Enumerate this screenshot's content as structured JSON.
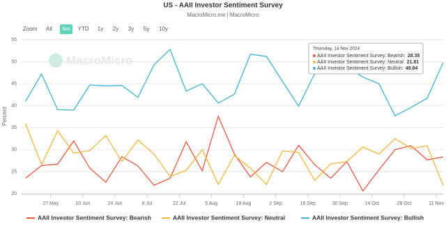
{
  "chart_data": {
    "type": "line",
    "title": "US - AAII Investor Sentiment Survey",
    "subtitle": "MacroMicro.me | MacroMicro",
    "watermark": "MacroMicro",
    "range_selector": {
      "label": "Zoom",
      "buttons": [
        "All",
        "6m",
        "YTD",
        "1y",
        "2y",
        "3y",
        "5y",
        "10y"
      ],
      "selected": 1
    },
    "y_label": "Percent",
    "x": [
      "16 May",
      "23 May",
      "30 May",
      "6 Jun",
      "13 Jun",
      "20 Jun",
      "27 Jun",
      "4 Jul",
      "11 Jul",
      "18 Jul",
      "25 Jul",
      "1 Aug",
      "8 Aug",
      "15 Aug",
      "22 Aug",
      "29 Aug",
      "5 Sep",
      "12 Sep",
      "19 Sep",
      "26 Sep",
      "3 Oct",
      "10 Oct",
      "17 Oct",
      "24 Oct",
      "31 Oct",
      "7 Nov",
      "14 Nov"
    ],
    "xlim": [
      "14 May",
      "14 Nov"
    ],
    "xticks": [
      "27 May",
      "10 Jun",
      "24 Jun",
      "8 Jul",
      "22 Jul",
      "5 Aug",
      "19 Aug",
      "2 Sep",
      "16 Sep",
      "30 Sep",
      "14 Oct",
      "28 Oct",
      "11 Nov"
    ],
    "ylim": [
      20,
      55
    ],
    "yticks": [
      20,
      25,
      30,
      35,
      40,
      45,
      50,
      55
    ],
    "grid": true,
    "series": [
      {
        "name": "AAII Investor Sentiment Survey: Bearish",
        "color": "#e4573f",
        "values": [
          23.5,
          26.4,
          26.7,
          32.0,
          25.8,
          22.6,
          28.4,
          26.3,
          21.9,
          23.5,
          31.8,
          25.2,
          37.6,
          29.0,
          23.8,
          27.1,
          25.0,
          31.0,
          26.6,
          23.5,
          27.3,
          20.6,
          25.4,
          30.0,
          30.9,
          27.7,
          28.35
        ]
      },
      {
        "name": "AAII Investor Sentiment Survey: Neutral",
        "color": "#f2b53c",
        "values": [
          35.9,
          26.6,
          34.3,
          29.2,
          29.8,
          33.2,
          27.3,
          32.2,
          29.0,
          23.9,
          25.3,
          30.0,
          22.1,
          28.7,
          25.8,
          22.1,
          29.7,
          29.4,
          23.0,
          26.8,
          27.3,
          30.6,
          29.0,
          32.5,
          30.3,
          30.9,
          21.81
        ]
      },
      {
        "name": "AAII Investor Sentiment Survey: Bullish",
        "color": "#3fb2d6",
        "values": [
          41.0,
          47.2,
          39.1,
          39.0,
          44.7,
          44.5,
          44.6,
          41.9,
          49.3,
          52.8,
          43.3,
          45.0,
          40.6,
          42.6,
          51.7,
          51.2,
          45.5,
          39.9,
          47.3,
          50.0,
          49.0,
          46.5,
          45.0,
          37.7,
          39.6,
          41.7,
          49.84
        ]
      }
    ],
    "tooltip": {
      "date": "Thursday, 14 Nov 2024",
      "index": 26,
      "labels": [
        "AAII Investor Sentiment Survey: Bearish:",
        "AAII Investor Sentiment Survey: Neutral:",
        "AAII Investor Sentiment Survey: Bullish:"
      ]
    }
  }
}
